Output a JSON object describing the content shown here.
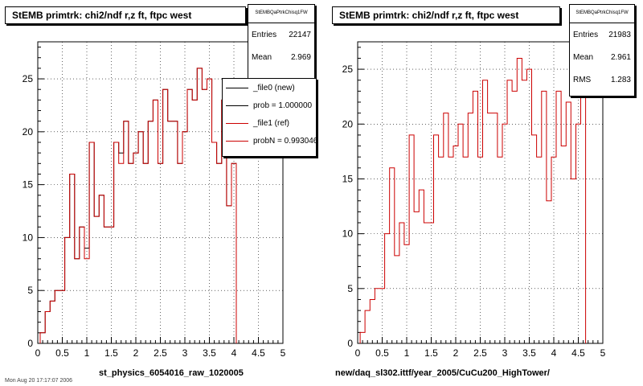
{
  "footer": "Mon Aug 20 17:17:07 2006",
  "colors": {
    "ref": "#cc0000",
    "new": "#000000",
    "grid": "#000000"
  },
  "chart_data": [
    {
      "type": "histogram",
      "title": "StEMB primtrk: chi2/ndf r,z ft, ftpc west",
      "xlabel": "st_physics_6054016_raw_1020005",
      "xlim": [
        0,
        5
      ],
      "ylim": [
        0,
        28.5
      ],
      "xticks": [
        0,
        0.5,
        1,
        1.5,
        2,
        2.5,
        3,
        3.5,
        4,
        4.5,
        5
      ],
      "yticks": [
        0,
        5,
        10,
        15,
        20,
        25
      ],
      "grid": true,
      "bin_width": 0.1,
      "stats": {
        "name": "StEMBQaPtrkChisq1FW",
        "rows": [
          {
            "label": "Entries",
            "value": "22147"
          },
          {
            "label": "Mean",
            "value": "2.969"
          }
        ]
      },
      "legend": {
        "position": "top-right",
        "entries": [
          {
            "label": "_file0 (new)",
            "color": "#000000"
          },
          {
            "label": "prob = 1.000000",
            "color": "#000000"
          },
          {
            "label": "_file1 (ref)",
            "color": "#cc0000"
          },
          {
            "label": "probN = 0.993046",
            "color": "#cc0000"
          }
        ]
      },
      "series": [
        {
          "name": "_file0 (new)",
          "color": "#000000",
          "start": 0.05,
          "values": [
            1,
            3,
            4,
            5,
            5,
            10,
            16,
            8,
            11,
            9,
            19,
            12,
            14,
            11,
            11,
            19,
            18,
            21,
            17,
            18,
            20,
            17,
            21,
            23,
            17,
            24,
            21,
            21,
            17,
            20,
            24,
            23,
            26,
            24,
            25,
            19,
            17,
            23,
            13,
            17
          ]
        },
        {
          "name": "_file1 (ref)",
          "color": "#cc0000",
          "start": 0.05,
          "values": [
            1,
            3,
            4,
            5,
            5,
            10,
            16,
            8,
            11,
            8,
            19,
            12,
            14,
            11,
            11,
            19,
            17,
            21,
            17,
            18,
            20,
            17,
            21,
            23,
            17,
            24,
            21,
            21,
            17,
            20,
            24,
            23,
            26,
            24,
            25,
            19,
            17,
            23,
            13,
            17
          ]
        }
      ]
    },
    {
      "type": "histogram",
      "title": "StEMB primtrk: chi2/ndf r,z ft, ftpc west",
      "xlabel": "new/daq_sl302.ittf/year_2005/CuCu200_HighTower/",
      "xlim": [
        0,
        5
      ],
      "ylim": [
        0,
        27.5
      ],
      "xticks": [
        0,
        0.5,
        1,
        1.5,
        2,
        2.5,
        3,
        3.5,
        4,
        4.5,
        5
      ],
      "yticks": [
        0,
        5,
        10,
        15,
        20,
        25
      ],
      "grid": true,
      "bin_width": 0.1,
      "stats": {
        "name": "StEMBQaPtrkChisq1FW",
        "rows": [
          {
            "label": "Entries",
            "value": "21983"
          },
          {
            "label": "Mean",
            "value": "2.961"
          },
          {
            "label": "RMS",
            "value": "1.283"
          }
        ]
      },
      "series": [
        {
          "name": "_file1 (ref)",
          "color": "#cc0000",
          "start": 0.05,
          "values": [
            1,
            3,
            4,
            5,
            5,
            10,
            16,
            8,
            11,
            9,
            19,
            12,
            14,
            11,
            11,
            19,
            17,
            21,
            17,
            18,
            20,
            17,
            21,
            23,
            17,
            24,
            21,
            21,
            17,
            20,
            24,
            23,
            26,
            24,
            25,
            19,
            17,
            23,
            13,
            17,
            23,
            18,
            22,
            15,
            20,
            24
          ]
        }
      ]
    }
  ]
}
